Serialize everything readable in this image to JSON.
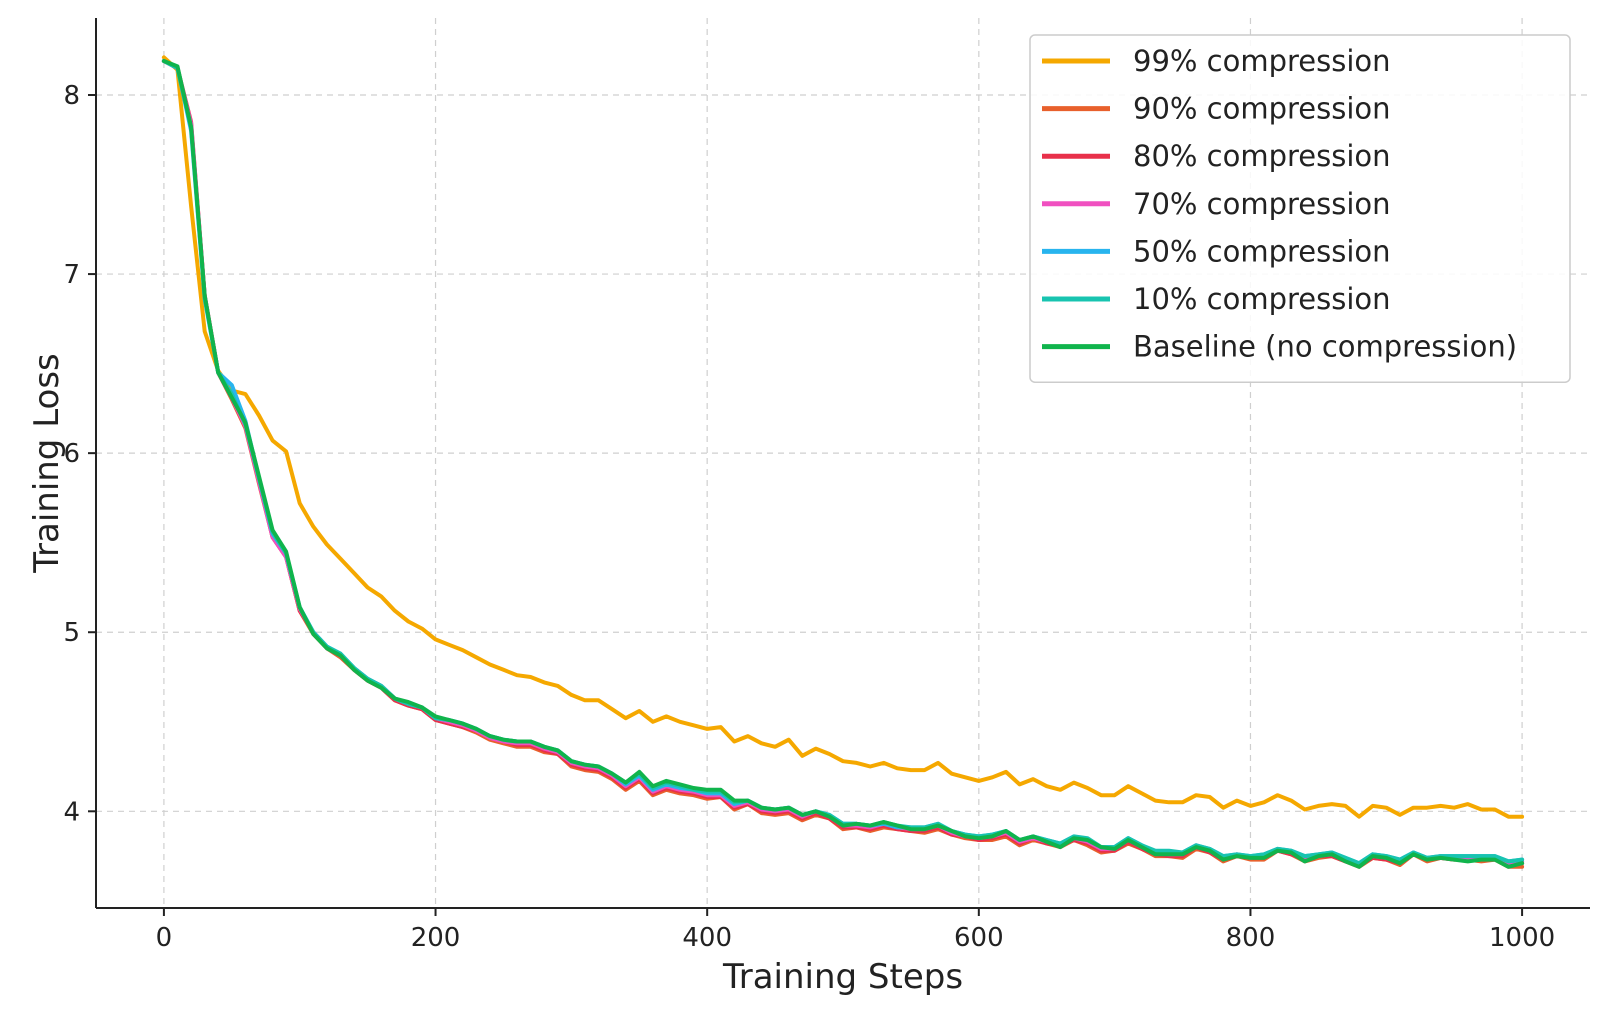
{
  "chart_data": {
    "type": "line",
    "title": "",
    "xlabel": "Training Steps",
    "ylabel": "Training Loss",
    "xlim": [
      -50,
      1050
    ],
    "ylim": [
      3.46,
      8.43
    ],
    "grid": true,
    "legend_position": "top-right",
    "x_ticks": [
      0,
      200,
      400,
      600,
      800,
      1000
    ],
    "x_tick_labels": [
      "0",
      "200",
      "400",
      "600",
      "800",
      "1000"
    ],
    "y_ticks": [
      4,
      5,
      6,
      7,
      8
    ],
    "y_tick_labels": [
      "4",
      "5",
      "6",
      "7",
      "8"
    ],
    "x": [
      0,
      10,
      20,
      30,
      40,
      50,
      60,
      70,
      80,
      90,
      100,
      110,
      120,
      130,
      140,
      150,
      160,
      170,
      180,
      190,
      200,
      210,
      220,
      230,
      240,
      250,
      260,
      270,
      280,
      290,
      300,
      310,
      320,
      330,
      340,
      350,
      360,
      370,
      380,
      390,
      400,
      410,
      420,
      430,
      440,
      450,
      460,
      470,
      480,
      490,
      500,
      510,
      520,
      530,
      540,
      550,
      560,
      570,
      580,
      590,
      600,
      610,
      620,
      630,
      640,
      650,
      660,
      670,
      680,
      690,
      700,
      710,
      720,
      730,
      740,
      750,
      760,
      770,
      780,
      790,
      800,
      810,
      820,
      830,
      840,
      850,
      860,
      870,
      880,
      890,
      900,
      910,
      920,
      930,
      940,
      950,
      960,
      970,
      980,
      990,
      1000
    ],
    "series": [
      {
        "name": "99% compression",
        "color": "#f5a800",
        "values": [
          8.21,
          8.14,
          7.38,
          6.68,
          6.46,
          6.35,
          6.33,
          6.21,
          6.07,
          6.01,
          5.72,
          5.59,
          5.49,
          5.41,
          5.33,
          5.25,
          5.2,
          5.12,
          5.06,
          5.02,
          4.96,
          4.93,
          4.9,
          4.86,
          4.82,
          4.79,
          4.76,
          4.75,
          4.72,
          4.7,
          4.65,
          4.62,
          4.62,
          4.57,
          4.52,
          4.56,
          4.5,
          4.53,
          4.5,
          4.48,
          4.46,
          4.47,
          4.39,
          4.42,
          4.38,
          4.36,
          4.4,
          4.31,
          4.35,
          4.32,
          4.28,
          4.27,
          4.25,
          4.27,
          4.24,
          4.23,
          4.23,
          4.27,
          4.21,
          4.19,
          4.17,
          4.19,
          4.22,
          4.15,
          4.18,
          4.14,
          4.12,
          4.16,
          4.13,
          4.09,
          4.09,
          4.14,
          4.1,
          4.06,
          4.05,
          4.05,
          4.09,
          4.08,
          4.02,
          4.06,
          4.03,
          4.05,
          4.09,
          4.06,
          4.01,
          4.03,
          4.04,
          4.03,
          3.97,
          4.03,
          4.02,
          3.98,
          4.02,
          4.02,
          4.03,
          4.02,
          4.04,
          4.01,
          4.01,
          3.97,
          3.97
        ]
      },
      {
        "name": "90% compression",
        "color": "#e8602c",
        "values": [
          8.19,
          8.15,
          7.83,
          6.88,
          6.45,
          6.3,
          6.14,
          5.83,
          5.53,
          5.42,
          5.12,
          4.99,
          4.91,
          4.86,
          4.79,
          4.73,
          4.69,
          4.62,
          4.59,
          4.57,
          4.51,
          4.49,
          4.47,
          4.44,
          4.4,
          4.38,
          4.36,
          4.36,
          4.33,
          4.32,
          4.25,
          4.23,
          4.22,
          4.18,
          4.12,
          4.17,
          4.09,
          4.12,
          4.1,
          4.09,
          4.07,
          4.08,
          4.01,
          4.04,
          3.99,
          3.98,
          3.99,
          3.95,
          3.98,
          3.96,
          3.9,
          3.91,
          3.89,
          3.91,
          3.9,
          3.89,
          3.88,
          3.9,
          3.87,
          3.85,
          3.84,
          3.84,
          3.86,
          3.81,
          3.84,
          3.82,
          3.8,
          3.84,
          3.81,
          3.77,
          3.78,
          3.82,
          3.79,
          3.75,
          3.75,
          3.74,
          3.79,
          3.77,
          3.72,
          3.75,
          3.73,
          3.73,
          3.78,
          3.76,
          3.72,
          3.74,
          3.75,
          3.72,
          3.69,
          3.74,
          3.73,
          3.7,
          3.76,
          3.72,
          3.74,
          3.73,
          3.73,
          3.72,
          3.73,
          3.69,
          3.69
        ]
      },
      {
        "name": "80% compression",
        "color": "#e8304a",
        "values": [
          8.19,
          8.15,
          7.85,
          6.88,
          6.45,
          6.31,
          6.15,
          5.84,
          5.53,
          5.42,
          5.12,
          5.0,
          4.91,
          4.87,
          4.79,
          4.73,
          4.69,
          4.62,
          4.59,
          4.57,
          4.51,
          4.49,
          4.47,
          4.45,
          4.41,
          4.39,
          4.37,
          4.37,
          4.34,
          4.32,
          4.26,
          4.24,
          4.23,
          4.19,
          4.13,
          4.18,
          4.1,
          4.13,
          4.11,
          4.1,
          4.08,
          4.08,
          4.02,
          4.04,
          4.0,
          3.99,
          4.0,
          3.96,
          3.99,
          3.96,
          3.91,
          3.91,
          3.9,
          3.92,
          3.9,
          3.89,
          3.89,
          3.91,
          3.87,
          3.86,
          3.84,
          3.85,
          3.87,
          3.82,
          3.85,
          3.82,
          3.81,
          3.84,
          3.82,
          3.78,
          3.78,
          3.83,
          3.79,
          3.76,
          3.75,
          3.75,
          3.8,
          3.77,
          3.73,
          3.75,
          3.74,
          3.74,
          3.78,
          3.76,
          3.73,
          3.75,
          3.75,
          3.72,
          3.7,
          3.74,
          3.73,
          3.71,
          3.76,
          3.73,
          3.74,
          3.73,
          3.74,
          3.73,
          3.73,
          3.7,
          3.71
        ]
      },
      {
        "name": "70% compression",
        "color": "#f050c0",
        "values": [
          8.19,
          8.15,
          7.84,
          6.88,
          6.45,
          6.31,
          6.15,
          5.84,
          5.53,
          5.42,
          5.13,
          5.0,
          4.92,
          4.87,
          4.8,
          4.74,
          4.7,
          4.63,
          4.6,
          4.58,
          4.52,
          4.5,
          4.48,
          4.45,
          4.41,
          4.39,
          4.38,
          4.38,
          4.35,
          4.33,
          4.27,
          4.25,
          4.24,
          4.2,
          4.14,
          4.19,
          4.11,
          4.14,
          4.12,
          4.11,
          4.09,
          4.09,
          4.03,
          4.05,
          4.01,
          4.0,
          4.01,
          3.97,
          4.0,
          3.97,
          3.92,
          3.92,
          3.91,
          3.93,
          3.91,
          3.9,
          3.9,
          3.92,
          3.88,
          3.86,
          3.85,
          3.86,
          3.88,
          3.83,
          3.85,
          3.83,
          3.81,
          3.85,
          3.83,
          3.79,
          3.79,
          3.84,
          3.8,
          3.77,
          3.76,
          3.76,
          3.81,
          3.78,
          3.74,
          3.76,
          3.74,
          3.75,
          3.79,
          3.77,
          3.74,
          3.75,
          3.76,
          3.73,
          3.7,
          3.75,
          3.74,
          3.72,
          3.77,
          3.73,
          3.75,
          3.74,
          3.74,
          3.74,
          3.74,
          3.71,
          3.72
        ]
      },
      {
        "name": "50% compression",
        "color": "#28b4ee",
        "values": [
          8.19,
          8.15,
          7.8,
          6.86,
          6.45,
          6.38,
          6.18,
          5.86,
          5.55,
          5.44,
          5.14,
          5.0,
          4.92,
          4.88,
          4.8,
          4.74,
          4.7,
          4.63,
          4.6,
          4.58,
          4.52,
          4.51,
          4.49,
          4.46,
          4.42,
          4.4,
          4.39,
          4.39,
          4.36,
          4.34,
          4.28,
          4.26,
          4.25,
          4.21,
          4.15,
          4.2,
          4.12,
          4.15,
          4.13,
          4.12,
          4.1,
          4.1,
          4.04,
          4.06,
          4.02,
          4.01,
          4.02,
          3.98,
          4.0,
          3.98,
          3.93,
          3.93,
          3.92,
          3.93,
          3.91,
          3.91,
          3.91,
          3.93,
          3.89,
          3.87,
          3.86,
          3.87,
          3.89,
          3.84,
          3.86,
          3.84,
          3.82,
          3.86,
          3.84,
          3.8,
          3.8,
          3.85,
          3.81,
          3.77,
          3.77,
          3.77,
          3.81,
          3.79,
          3.75,
          3.76,
          3.75,
          3.76,
          3.79,
          3.78,
          3.75,
          3.76,
          3.77,
          3.74,
          3.71,
          3.76,
          3.75,
          3.73,
          3.77,
          3.74,
          3.75,
          3.75,
          3.75,
          3.75,
          3.75,
          3.72,
          3.73
        ]
      },
      {
        "name": "10% compression",
        "color": "#18c4b0",
        "values": [
          8.19,
          8.15,
          7.82,
          6.87,
          6.45,
          6.33,
          6.16,
          5.86,
          5.56,
          5.44,
          5.14,
          5.0,
          4.92,
          4.88,
          4.8,
          4.74,
          4.7,
          4.63,
          4.6,
          4.58,
          4.52,
          4.51,
          4.49,
          4.46,
          4.42,
          4.4,
          4.39,
          4.39,
          4.36,
          4.34,
          4.28,
          4.26,
          4.25,
          4.21,
          4.16,
          4.21,
          4.13,
          4.16,
          4.14,
          4.12,
          4.11,
          4.11,
          4.05,
          4.06,
          4.02,
          4.01,
          4.02,
          3.98,
          4.0,
          3.98,
          3.93,
          3.93,
          3.92,
          3.94,
          3.92,
          3.91,
          3.91,
          3.93,
          3.89,
          3.87,
          3.86,
          3.87,
          3.89,
          3.84,
          3.86,
          3.84,
          3.82,
          3.86,
          3.85,
          3.8,
          3.8,
          3.85,
          3.81,
          3.78,
          3.78,
          3.77,
          3.81,
          3.79,
          3.75,
          3.76,
          3.75,
          3.76,
          3.79,
          3.78,
          3.75,
          3.76,
          3.77,
          3.74,
          3.71,
          3.76,
          3.75,
          3.73,
          3.77,
          3.74,
          3.75,
          3.75,
          3.75,
          3.75,
          3.75,
          3.72,
          3.73
        ]
      },
      {
        "name": "Baseline (no compression)",
        "color": "#10b44c",
        "values": [
          8.19,
          8.16,
          7.82,
          6.88,
          6.45,
          6.31,
          6.17,
          5.87,
          5.57,
          5.45,
          5.14,
          4.99,
          4.91,
          4.87,
          4.79,
          4.73,
          4.69,
          4.63,
          4.61,
          4.58,
          4.53,
          4.51,
          4.49,
          4.46,
          4.42,
          4.4,
          4.39,
          4.39,
          4.36,
          4.34,
          4.28,
          4.26,
          4.25,
          4.21,
          4.16,
          4.22,
          4.14,
          4.17,
          4.15,
          4.13,
          4.12,
          4.12,
          4.06,
          4.06,
          4.02,
          4.01,
          4.02,
          3.98,
          4.0,
          3.97,
          3.92,
          3.93,
          3.92,
          3.94,
          3.92,
          3.9,
          3.9,
          3.92,
          3.89,
          3.86,
          3.85,
          3.86,
          3.89,
          3.84,
          3.86,
          3.83,
          3.8,
          3.85,
          3.84,
          3.8,
          3.79,
          3.84,
          3.8,
          3.76,
          3.76,
          3.76,
          3.8,
          3.78,
          3.73,
          3.75,
          3.74,
          3.74,
          3.78,
          3.77,
          3.72,
          3.75,
          3.76,
          3.72,
          3.69,
          3.75,
          3.74,
          3.71,
          3.76,
          3.73,
          3.74,
          3.73,
          3.72,
          3.73,
          3.73,
          3.69,
          3.71
        ]
      }
    ]
  }
}
